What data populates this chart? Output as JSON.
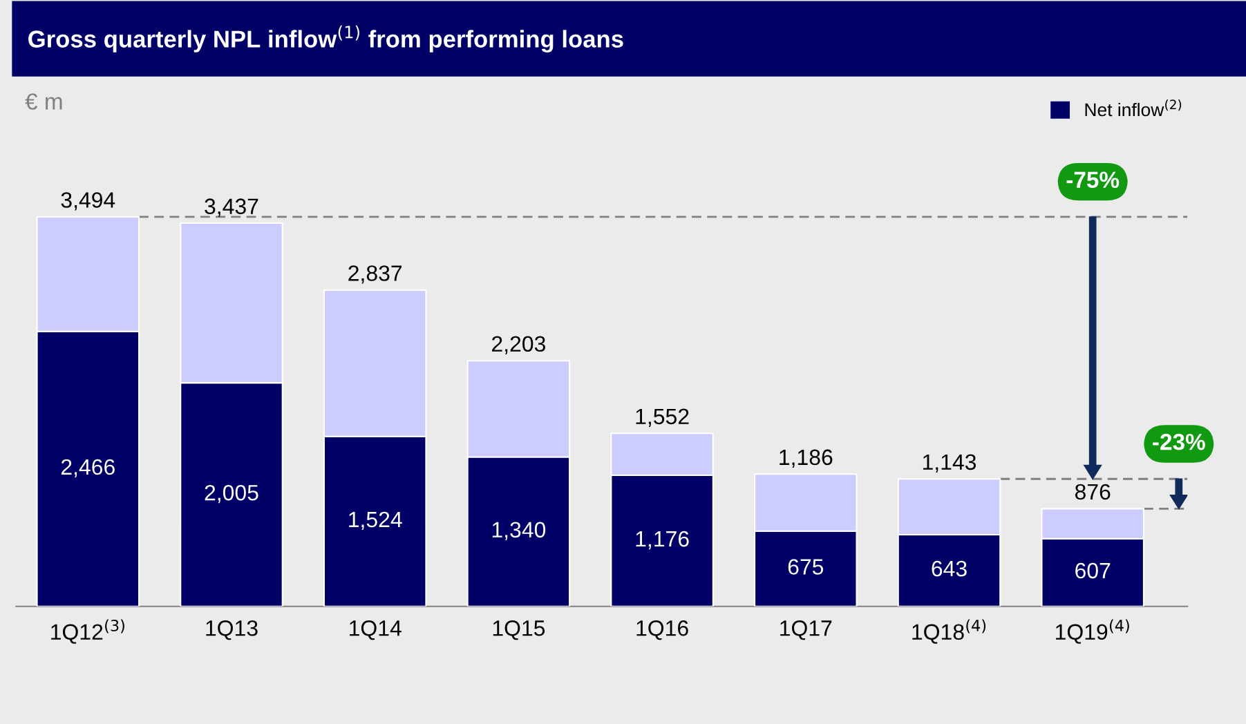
{
  "chart_data": {
    "type": "bar",
    "title": "Gross quarterly NPL inflow$^{(1)}$ from performing loans",
    "stacked": true,
    "legend": "top right",
    "categories": [
      "1Q12$^{(3)}$",
      "1Q13",
      "1Q14",
      "1Q15",
      "1Q16",
      "1Q17",
      "1Q18$^{(4)}$",
      "1Q19$^{(4)}$"
    ],
    "series": [
      {
        "name": "Net inflow$^{(2)}$",
        "color": "#000066",
        "values": [
          2466,
          2005,
          1524,
          1340,
          1176,
          675,
          643,
          607
        ],
        "value_labels": [
          "2,466",
          "2,005",
          "1,524",
          "1,340",
          "1,176",
          "675",
          "643",
          "607"
        ]
      },
      {
        "color": "#ccccff",
        "values": [
          1028,
          1432,
          1313,
          863,
          376,
          511,
          500,
          269
        ]
      }
    ],
    "totals": [
      "3,494",
      "3,437",
      "2,837",
      "2,203",
      "1,552",
      "1,186",
      "1,143",
      "876"
    ],
    "ref_lines": [
      {
        "axis": "y",
        "value": 3494,
        "color": "#808080",
        "line_style": "dashed"
      },
      {
        "axis": "y",
        "value": 1143,
        "color": "#808080",
        "line_style": "dashed"
      }
    ],
    "annotations": [
      "€ m",
      "-75%",
      "-23%"
    ]
  }
}
